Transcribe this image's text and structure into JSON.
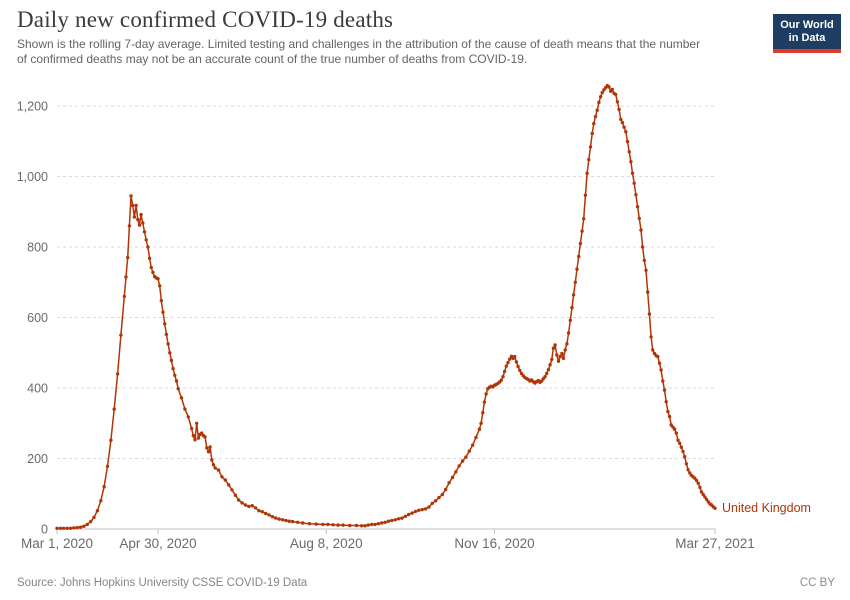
{
  "header": {
    "title": "Daily new confirmed COVID-19 deaths",
    "subtitle_line1": "Shown is the rolling 7-day average. Limited testing and challenges in the attribution of the cause of death means that the number",
    "subtitle_line2": "of confirmed deaths may not be an accurate count of the true number of deaths from COVID-19.",
    "logo": {
      "line1": "Our World",
      "line2": "in Data"
    }
  },
  "footer": {
    "source": "Source: Johns Hopkins University CSSE COVID-19 Data",
    "license": "CC BY"
  },
  "colors": {
    "series": "#b13507",
    "logo_bg": "#1d3d63",
    "logo_bar": "#dc3c2a",
    "grid": "#d9d9d9",
    "axis": "#c2c2c2",
    "tick_text": "#6a6a6a",
    "title_text": "#3a3a3a",
    "subtitle_text": "#646464",
    "footer_text": "#858585"
  },
  "chart_data": {
    "type": "line",
    "title": "Daily new confirmed COVID-19 deaths",
    "note": "rolling 7-day average, days counted from Mar 1, 2020",
    "grid": "dashed-horizontal",
    "legend_position": "end-of-line",
    "x": {
      "unit": "date",
      "start": "Mar 1, 2020",
      "end": "Mar 27, 2021",
      "domain_days": [
        0,
        391
      ],
      "ticks": [
        {
          "day": 0,
          "label": "Mar 1, 2020"
        },
        {
          "day": 60,
          "label": "Apr 30, 2020"
        },
        {
          "day": 160,
          "label": "Aug 8, 2020"
        },
        {
          "day": 260,
          "label": "Nov 16, 2020"
        },
        {
          "day": 391,
          "label": "Mar 27, 2021"
        }
      ]
    },
    "y": {
      "domain": [
        0,
        1260
      ],
      "ticks": [
        {
          "value": 0,
          "label": "0"
        },
        {
          "value": 200,
          "label": "200"
        },
        {
          "value": 400,
          "label": "400"
        },
        {
          "value": 600,
          "label": "600"
        },
        {
          "value": 800,
          "label": "800"
        },
        {
          "value": 1000,
          "label": "1,000"
        },
        {
          "value": 1200,
          "label": "1,200"
        }
      ]
    },
    "series": [
      {
        "name": "United Kingdom",
        "color": "#b13507",
        "points": [
          [
            0,
            2
          ],
          [
            2,
            2
          ],
          [
            4,
            2
          ],
          [
            6,
            2
          ],
          [
            8,
            2
          ],
          [
            10,
            3
          ],
          [
            12,
            4
          ],
          [
            14,
            5
          ],
          [
            16,
            8
          ],
          [
            18,
            13
          ],
          [
            20,
            21
          ],
          [
            22,
            33
          ],
          [
            24,
            52
          ],
          [
            26,
            80
          ],
          [
            28,
            120
          ],
          [
            30,
            178
          ],
          [
            32,
            252
          ],
          [
            34,
            340
          ],
          [
            36,
            440
          ],
          [
            38,
            550
          ],
          [
            40,
            660
          ],
          [
            41,
            715
          ],
          [
            42,
            770
          ],
          [
            43,
            860
          ],
          [
            44,
            945
          ],
          [
            45,
            918
          ],
          [
            46,
            885
          ],
          [
            47,
            918
          ],
          [
            48,
            878
          ],
          [
            49,
            862
          ],
          [
            50,
            892
          ],
          [
            51,
            868
          ],
          [
            52,
            843
          ],
          [
            53,
            820
          ],
          [
            54,
            800
          ],
          [
            55,
            768
          ],
          [
            56,
            742
          ],
          [
            57,
            728
          ],
          [
            58,
            716
          ],
          [
            59,
            712
          ],
          [
            60,
            710
          ],
          [
            61,
            690
          ],
          [
            62,
            648
          ],
          [
            63,
            615
          ],
          [
            64,
            582
          ],
          [
            65,
            552
          ],
          [
            66,
            525
          ],
          [
            67,
            500
          ],
          [
            68,
            478
          ],
          [
            69,
            455
          ],
          [
            70,
            436
          ],
          [
            71,
            420
          ],
          [
            72,
            398
          ],
          [
            74,
            372
          ],
          [
            76,
            340
          ],
          [
            78,
            318
          ],
          [
            80,
            285
          ],
          [
            81,
            265
          ],
          [
            82,
            253
          ],
          [
            83,
            300
          ],
          [
            84,
            258
          ],
          [
            85,
            268
          ],
          [
            86,
            272
          ],
          [
            87,
            265
          ],
          [
            88,
            261
          ],
          [
            89,
            230
          ],
          [
            90,
            219
          ],
          [
            91,
            233
          ],
          [
            92,
            196
          ],
          [
            93,
            182
          ],
          [
            94,
            173
          ],
          [
            96,
            167
          ],
          [
            98,
            148
          ],
          [
            100,
            139
          ],
          [
            102,
            125
          ],
          [
            104,
            111
          ],
          [
            106,
            96
          ],
          [
            108,
            82
          ],
          [
            110,
            74
          ],
          [
            112,
            68
          ],
          [
            114,
            64
          ],
          [
            116,
            66
          ],
          [
            118,
            60
          ],
          [
            120,
            52
          ],
          [
            122,
            49
          ],
          [
            124,
            44
          ],
          [
            126,
            40
          ],
          [
            128,
            35
          ],
          [
            130,
            31
          ],
          [
            132,
            28
          ],
          [
            134,
            26
          ],
          [
            136,
            24
          ],
          [
            138,
            22
          ],
          [
            140,
            21
          ],
          [
            143,
            19
          ],
          [
            146,
            17
          ],
          [
            150,
            15
          ],
          [
            154,
            14
          ],
          [
            158,
            13
          ],
          [
            161,
            13
          ],
          [
            164,
            12
          ],
          [
            167,
            11
          ],
          [
            170,
            11
          ],
          [
            174,
            10
          ],
          [
            178,
            10
          ],
          [
            181,
            9
          ],
          [
            183,
            9
          ],
          [
            185,
            11
          ],
          [
            187,
            13
          ],
          [
            189,
            13
          ],
          [
            191,
            15
          ],
          [
            193,
            17
          ],
          [
            195,
            19
          ],
          [
            197,
            22
          ],
          [
            199,
            24
          ],
          [
            201,
            26
          ],
          [
            203,
            29
          ],
          [
            205,
            31
          ],
          [
            207,
            36
          ],
          [
            209,
            41
          ],
          [
            211,
            45
          ],
          [
            213,
            50
          ],
          [
            215,
            53
          ],
          [
            217,
            55
          ],
          [
            219,
            57
          ],
          [
            221,
            62
          ],
          [
            223,
            73
          ],
          [
            225,
            80
          ],
          [
            227,
            89
          ],
          [
            229,
            98
          ],
          [
            231,
            112
          ],
          [
            233,
            131
          ],
          [
            235,
            146
          ],
          [
            237,
            162
          ],
          [
            239,
            179
          ],
          [
            241,
            193
          ],
          [
            243,
            204
          ],
          [
            245,
            221
          ],
          [
            247,
            238
          ],
          [
            249,
            260
          ],
          [
            251,
            283
          ],
          [
            252,
            300
          ],
          [
            253,
            330
          ],
          [
            254,
            360
          ],
          [
            255,
            383
          ],
          [
            256,
            398
          ],
          [
            257,
            402
          ],
          [
            258,
            405
          ],
          [
            259,
            403
          ],
          [
            260,
            408
          ],
          [
            261,
            410
          ],
          [
            262,
            413
          ],
          [
            263,
            417
          ],
          [
            264,
            422
          ],
          [
            265,
            432
          ],
          [
            266,
            447
          ],
          [
            267,
            462
          ],
          [
            268,
            472
          ],
          [
            269,
            482
          ],
          [
            270,
            490
          ],
          [
            271,
            484
          ],
          [
            272,
            489
          ],
          [
            273,
            474
          ],
          [
            274,
            461
          ],
          [
            275,
            450
          ],
          [
            276,
            441
          ],
          [
            277,
            435
          ],
          [
            278,
            430
          ],
          [
            279,
            427
          ],
          [
            280,
            424
          ],
          [
            281,
            420
          ],
          [
            282,
            423
          ],
          [
            283,
            418
          ],
          [
            284,
            414
          ],
          [
            285,
            418
          ],
          [
            286,
            421
          ],
          [
            287,
            416
          ],
          [
            288,
            420
          ],
          [
            289,
            426
          ],
          [
            290,
            432
          ],
          [
            291,
            441
          ],
          [
            292,
            452
          ],
          [
            293,
            466
          ],
          [
            294,
            481
          ],
          [
            295,
            513
          ],
          [
            296,
            522
          ],
          [
            297,
            494
          ],
          [
            298,
            476
          ],
          [
            299,
            489
          ],
          [
            300,
            498
          ],
          [
            301,
            484
          ],
          [
            302,
            508
          ],
          [
            303,
            525
          ],
          [
            304,
            556
          ],
          [
            305,
            592
          ],
          [
            306,
            628
          ],
          [
            307,
            664
          ],
          [
            308,
            700
          ],
          [
            309,
            737
          ],
          [
            310,
            773
          ],
          [
            311,
            810
          ],
          [
            312,
            845
          ],
          [
            313,
            880
          ],
          [
            314,
            947
          ],
          [
            315,
            1009
          ],
          [
            316,
            1048
          ],
          [
            317,
            1084
          ],
          [
            318,
            1122
          ],
          [
            319,
            1150
          ],
          [
            320,
            1170
          ],
          [
            321,
            1188
          ],
          [
            322,
            1210
          ],
          [
            323,
            1226
          ],
          [
            324,
            1238
          ],
          [
            325,
            1246
          ],
          [
            326,
            1252
          ],
          [
            327,
            1258
          ],
          [
            328,
            1254
          ],
          [
            329,
            1242
          ],
          [
            330,
            1247
          ],
          [
            331,
            1236
          ],
          [
            332,
            1233
          ],
          [
            333,
            1212
          ],
          [
            334,
            1190
          ],
          [
            335,
            1162
          ],
          [
            336,
            1153
          ],
          [
            337,
            1140
          ],
          [
            338,
            1127
          ],
          [
            339,
            1099
          ],
          [
            340,
            1070
          ],
          [
            341,
            1042
          ],
          [
            342,
            1009
          ],
          [
            343,
            981
          ],
          [
            344,
            948
          ],
          [
            345,
            914
          ],
          [
            346,
            881
          ],
          [
            347,
            848
          ],
          [
            348,
            800
          ],
          [
            349,
            762
          ],
          [
            350,
            734
          ],
          [
            351,
            672
          ],
          [
            352,
            610
          ],
          [
            353,
            545
          ],
          [
            354,
            508
          ],
          [
            355,
            498
          ],
          [
            356,
            492
          ],
          [
            357,
            489
          ],
          [
            358,
            470
          ],
          [
            359,
            451
          ],
          [
            360,
            420
          ],
          [
            361,
            394
          ],
          [
            362,
            361
          ],
          [
            363,
            333
          ],
          [
            364,
            319
          ],
          [
            365,
            295
          ],
          [
            366,
            289
          ],
          [
            367,
            283
          ],
          [
            368,
            272
          ],
          [
            369,
            252
          ],
          [
            370,
            243
          ],
          [
            371,
            232
          ],
          [
            372,
            220
          ],
          [
            373,
            205
          ],
          [
            374,
            185
          ],
          [
            375,
            168
          ],
          [
            376,
            159
          ],
          [
            377,
            152
          ],
          [
            378,
            148
          ],
          [
            379,
            144
          ],
          [
            380,
            138
          ],
          [
            381,
            130
          ],
          [
            382,
            118
          ],
          [
            383,
            105
          ],
          [
            384,
            98
          ],
          [
            385,
            91
          ],
          [
            386,
            84
          ],
          [
            387,
            77
          ],
          [
            388,
            71
          ],
          [
            389,
            68
          ],
          [
            390,
            63
          ],
          [
            391,
            59
          ]
        ]
      }
    ]
  }
}
